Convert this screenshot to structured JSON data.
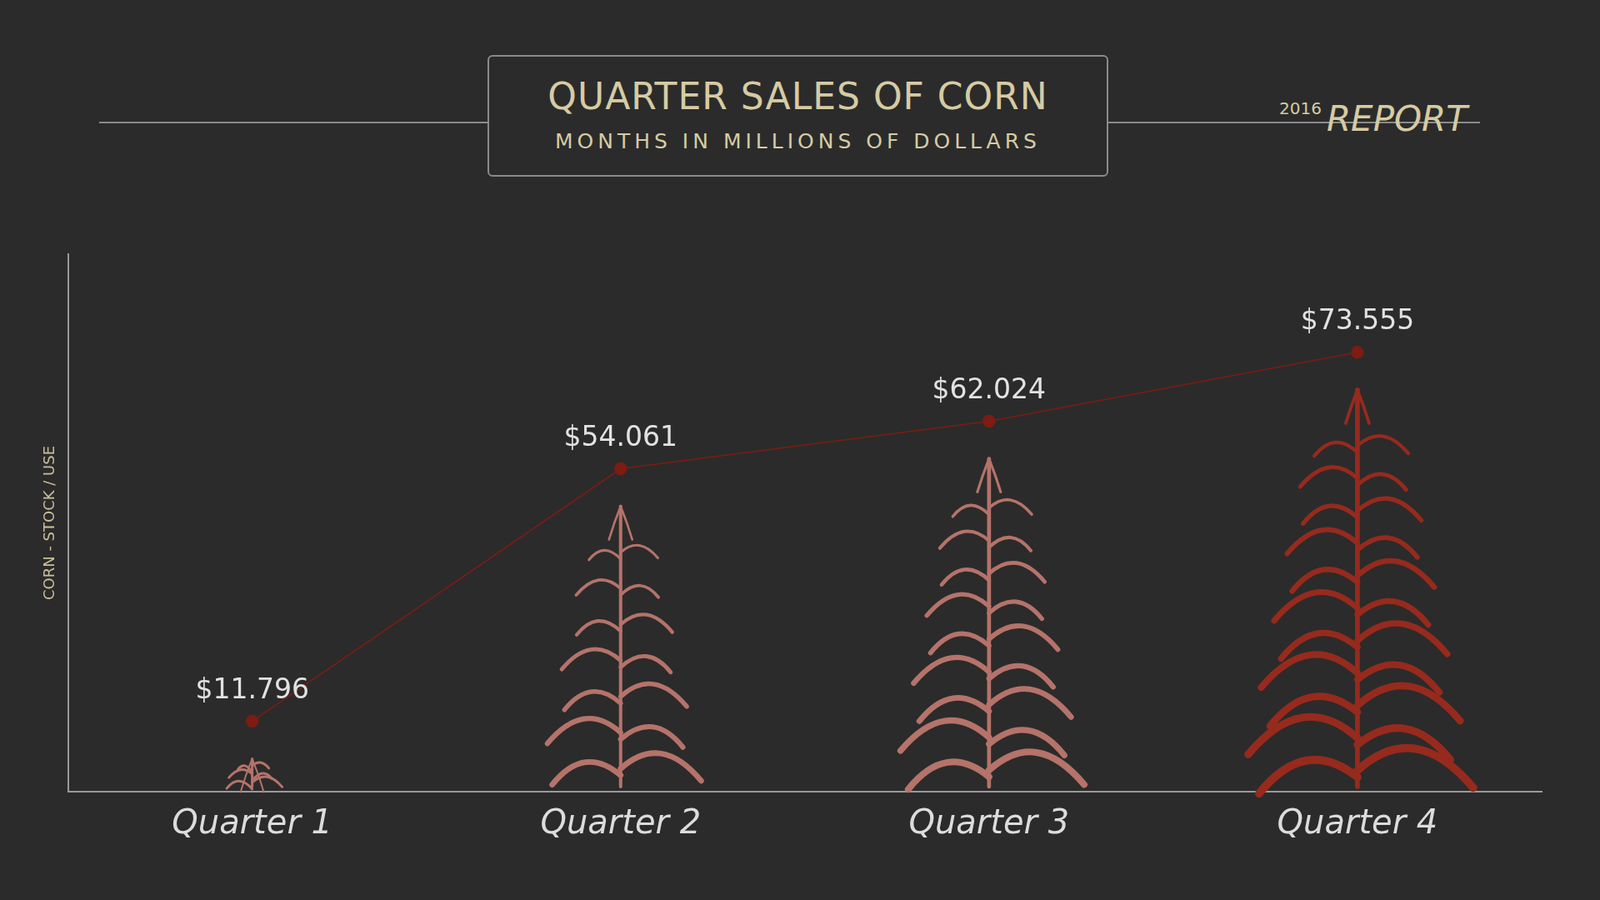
{
  "chart_data": {
    "type": "line",
    "title": "QUARTER SALES OF CORN",
    "subtitle": "MONTHS IN MILLIONS OF DOLLARS",
    "annotations": [
      "2016",
      "REPORT"
    ],
    "y_label": "CORN - STOCK / USE",
    "categories": [
      "Quarter 1",
      "Quarter 2",
      "Quarter 3",
      "Quarter 4"
    ],
    "values": [
      11.796,
      54.061,
      62.024,
      73.555
    ],
    "value_labels": [
      "$11.796",
      "$54.061",
      "$62.024",
      "$73.555"
    ],
    "data_labels": true,
    "color": "#7d1c12",
    "colors": [
      "#b5736a",
      "#b5736a",
      "#b5736a",
      "#962a1d"
    ],
    "marker": "circle",
    "line_style": "solid",
    "ylim": [
      0,
      90
    ],
    "yticks": [],
    "tick_labels": "x",
    "grid": false
  }
}
